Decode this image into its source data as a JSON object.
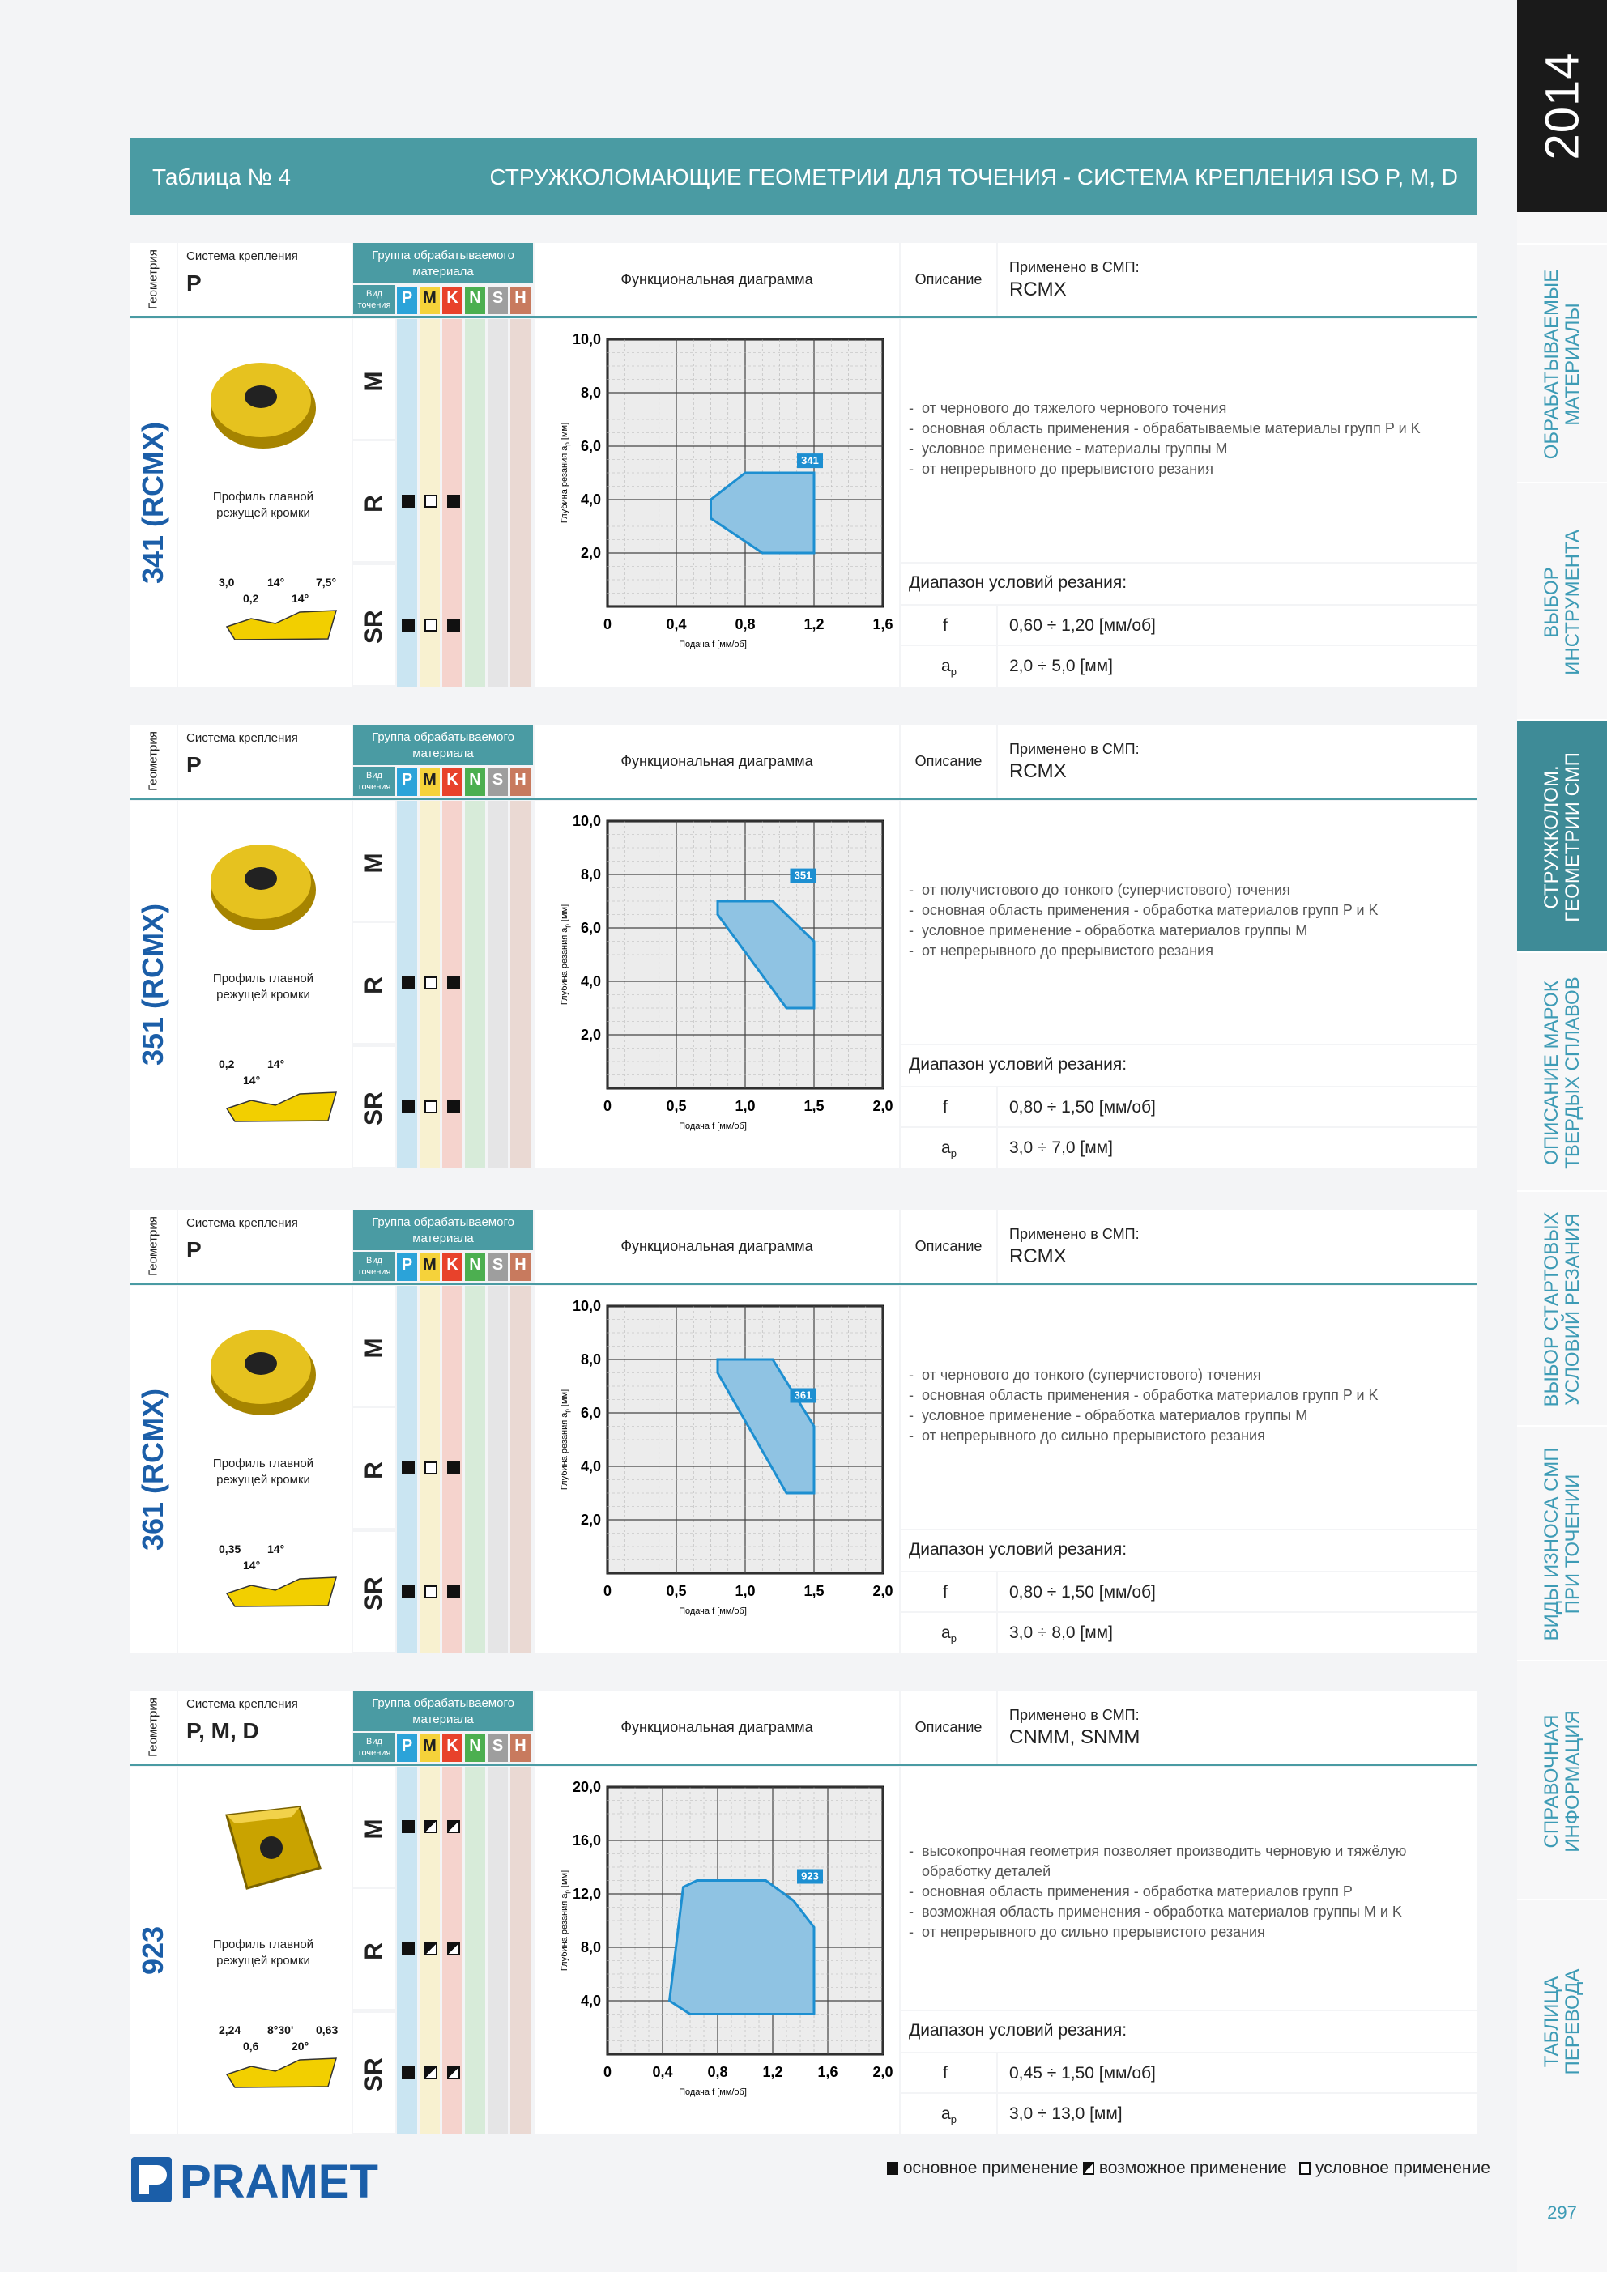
{
  "header": {
    "left": "Таблица № 4",
    "right": "СТРУЖКОЛОМАЮЩИЕ ГЕОМЕТРИИ ДЛЯ ТОЧЕНИЯ - СИСТЕМА КРЕПЛЕНИЯ ISO P, M, D"
  },
  "side": {
    "year": "2014",
    "tabs": [
      {
        "label": "ОБРАБАТЫВАЕМЫЕ\nМАТЕРИАЛЫ"
      },
      {
        "label": "ВЫБОР\nИНСТРУМЕНТА"
      },
      {
        "label": "СТРУЖКОЛОМ.\nГЕОМЕТРИИ СМП",
        "active": true
      },
      {
        "label": "ОПИСАНИЕ МАРОК\nТВЕРДЫХ СПЛАВОВ"
      },
      {
        "label": "ВЫБОР СТАРТОВЫХ\nУСЛОВИЙ РЕЗАНИЯ"
      },
      {
        "label": "ВИДЫ ИЗНОСА СМП\nПРИ ТОЧЕНИИ"
      },
      {
        "label": "СПРАВОЧНАЯ\nИНФОРМАЦИЯ"
      },
      {
        "label": "ТАБЛИЦА\nПЕРЕВОДА"
      }
    ],
    "page": "297"
  },
  "labels": {
    "geometry": "Геометрия",
    "clamping": "Система крепления",
    "group": "Группа обрабатываемого материала",
    "turning": "Вид точения",
    "diagram": "Функциональная диаграмма",
    "description": "Описание",
    "applied": "Применено в СМП:",
    "profile": "Профиль главной режущей кромки",
    "range": "Диапазон условий резания:",
    "f": "f",
    "ap": "a",
    "ap_sub": "p",
    "ylabel": "Глубина резания a",
    "ylabel_unit": " [мм]",
    "xlabel": "Подача f [мм/об]",
    "iso": [
      "P",
      "M",
      "K",
      "N",
      "S",
      "H"
    ],
    "modes": [
      "M",
      "R",
      "SR"
    ]
  },
  "sections": [
    {
      "name": "341 (RCMX)",
      "clamp": "P",
      "inserts": "RCMX",
      "symbols": [
        [],
        [
          "full",
          "empty",
          "full"
        ],
        [
          "full",
          "empty",
          "full"
        ]
      ],
      "desc": [
        "от чернового до тяжелого чернового точения",
        "основная область применения - обрабатываемые материалы групп P и K",
        "условное применение - материалы группы M",
        "от непрерывного до прерывистого резания"
      ],
      "f": "0,60 ÷ 1,20 [мм/об]",
      "ap": "2,0 ÷ 5,0 [мм]",
      "profile_dims": [
        "3,0",
        "0,2",
        "14°",
        "14°",
        "7,5°"
      ],
      "chart": {
        "xticks": [
          "0",
          "0,4",
          "0,8",
          "1,2",
          "1,6"
        ],
        "xmax": 1.6,
        "ymax": 10,
        "yticks": [
          "10,0",
          "8,0",
          "6,0",
          "4,0",
          "2,0"
        ],
        "polygon": [
          [
            0.6,
            4.0
          ],
          [
            0.6,
            3.3
          ],
          [
            0.9,
            2.0
          ],
          [
            1.2,
            2.0
          ],
          [
            1.2,
            5.0
          ],
          [
            0.8,
            5.0
          ],
          [
            0.6,
            4.0
          ]
        ],
        "tag": "341",
        "tag_at": [
          1.12,
          5.3
        ]
      }
    },
    {
      "name": "351 (RCMX)",
      "clamp": "P",
      "inserts": "RCMX",
      "symbols": [
        [],
        [
          "full",
          "empty",
          "full"
        ],
        [
          "full",
          "empty",
          "full"
        ]
      ],
      "desc": [
        "от получистового до тонкого (суперчистового) точения",
        "основная область применения - обработка материалов групп P и K",
        "условное применение - обработка материалов группы M",
        "от непрерывного до прерывистого резания"
      ],
      "f": "0,80 ÷ 1,50 [мм/об]",
      "ap": "3,0 ÷ 7,0 [мм]",
      "profile_dims": [
        "0,2",
        "14°",
        "14°"
      ],
      "chart": {
        "xticks": [
          "0",
          "0,5",
          "1,0",
          "1,5",
          "2,0"
        ],
        "xmax": 2.0,
        "ymax": 10,
        "yticks": [
          "10,0",
          "8,0",
          "6,0",
          "4,0",
          "2,0"
        ],
        "polygon": [
          [
            0.8,
            7.0
          ],
          [
            1.2,
            7.0
          ],
          [
            1.5,
            5.5
          ],
          [
            1.5,
            3.0
          ],
          [
            1.3,
            3.0
          ],
          [
            0.8,
            6.5
          ],
          [
            0.8,
            7.0
          ]
        ],
        "tag": "351",
        "tag_at": [
          1.35,
          7.8
        ]
      }
    },
    {
      "name": "361 (RCMX)",
      "clamp": "P",
      "inserts": "RCMX",
      "symbols": [
        [],
        [
          "full",
          "empty",
          "full"
        ],
        [
          "full",
          "empty",
          "full"
        ]
      ],
      "desc": [
        "от чернового до тонкого (суперчистового) точения",
        "основная область применения - обработка материалов групп P и K",
        "условное применение - обработка материалов группы M",
        "от непрерывного до сильно прерывистого резания"
      ],
      "f": "0,80 ÷ 1,50 [мм/об]",
      "ap": "3,0 ÷ 8,0 [мм]",
      "profile_dims": [
        "0,35",
        "14°",
        "14°"
      ],
      "chart": {
        "xticks": [
          "0",
          "0,5",
          "1,0",
          "1,5",
          "2,0"
        ],
        "xmax": 2.0,
        "ymax": 10,
        "yticks": [
          "10,0",
          "8,0",
          "6,0",
          "4,0",
          "2,0"
        ],
        "polygon": [
          [
            0.8,
            8.0
          ],
          [
            1.2,
            8.0
          ],
          [
            1.5,
            5.5
          ],
          [
            1.5,
            3.0
          ],
          [
            1.3,
            3.0
          ],
          [
            0.8,
            7.5
          ],
          [
            0.8,
            8.0
          ]
        ],
        "tag": "361",
        "tag_at": [
          1.35,
          6.5
        ]
      }
    },
    {
      "name": "923",
      "clamp": "P, M, D",
      "inserts": "CNMM, SNMM",
      "symbols": [
        [
          "full",
          "half",
          "half"
        ],
        [
          "full",
          "half",
          "half"
        ],
        [
          "full",
          "half",
          "half"
        ]
      ],
      "desc": [
        "высокопрочная геометрия позволяет производить черновую и тяжёлую обработку деталей",
        "основная область применения - обработка материалов групп P",
        "возможная область применения - обработка материалов группы M и K",
        "от непрерывного до сильно прерывистого резания"
      ],
      "f": "0,45 ÷ 1,50 [мм/об]",
      "ap": "3,0 ÷ 13,0 [мм]",
      "profile_dims": [
        "2,24",
        "0,6",
        "8°30'",
        "20°",
        "0,63"
      ],
      "chart": {
        "xticks": [
          "0",
          "0,4",
          "0,8",
          "1,2",
          "1,6",
          "2,0"
        ],
        "xmax": 2.0,
        "ymax": 20,
        "yticks": [
          "20,0",
          "16,0",
          "12,0",
          "8,0",
          "4,0"
        ],
        "polygon": [
          [
            0.55,
            12.5
          ],
          [
            0.65,
            13.0
          ],
          [
            1.15,
            13.0
          ],
          [
            1.35,
            11.5
          ],
          [
            1.5,
            9.5
          ],
          [
            1.5,
            3.0
          ],
          [
            0.6,
            3.0
          ],
          [
            0.45,
            4.0
          ],
          [
            0.55,
            12.5
          ]
        ],
        "tag": "923",
        "tag_at": [
          1.4,
          13.0
        ]
      }
    }
  ],
  "legend": {
    "full": "основное применение",
    "half": "возможное применение",
    "empty": "условное применение"
  },
  "brand": "PRAMET",
  "colors": {
    "teal": "#4a9ba3",
    "blue": "#1b5ea8",
    "chart_fill": "#8fc3e3",
    "chart_stroke": "#1d8fd1"
  }
}
